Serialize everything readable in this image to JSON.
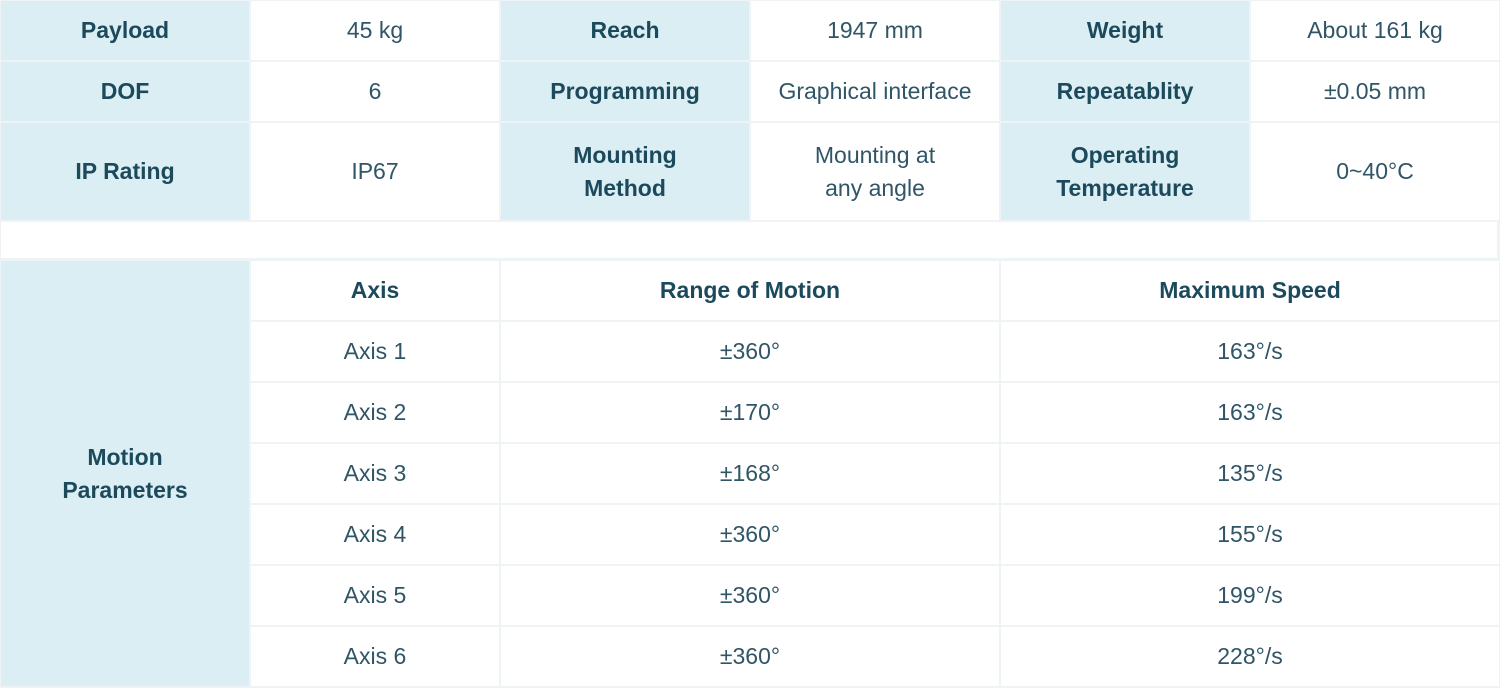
{
  "specs": {
    "payload_label": "Payload",
    "payload_value": "45 kg",
    "reach_label": "Reach",
    "reach_value": "1947 mm",
    "weight_label": "Weight",
    "weight_value": "About 161 kg",
    "dof_label": "DOF",
    "dof_value": "6",
    "programming_label": "Programming",
    "programming_value": "Graphical interface",
    "repeatability_label": "Repeatablity",
    "repeatability_value": "±0.05 mm",
    "ip_label": "IP Rating",
    "ip_value": "IP67",
    "mounting_label": "Mounting\nMethod",
    "mounting_value": "Mounting at\nany angle",
    "temperature_label": "Operating\nTemperature",
    "temperature_value": "0~40°C"
  },
  "motion": {
    "section_label": "Motion\nParameters",
    "headers": {
      "axis": "Axis",
      "range": "Range of Motion",
      "speed": "Maximum Speed"
    },
    "rows": [
      {
        "axis": "Axis 1",
        "range": "±360°",
        "speed": "163°/s"
      },
      {
        "axis": "Axis 2",
        "range": "±170°",
        "speed": "163°/s"
      },
      {
        "axis": "Axis 3",
        "range": "±168°",
        "speed": "135°/s"
      },
      {
        "axis": "Axis 4",
        "range": "±360°",
        "speed": "155°/s"
      },
      {
        "axis": "Axis 5",
        "range": "±360°",
        "speed": "199°/s"
      },
      {
        "axis": "Axis 6",
        "range": "±360°",
        "speed": "228°/s"
      }
    ]
  },
  "colors": {
    "header_cell_bg": "#daeef3",
    "value_cell_bg": "#ffffff",
    "grid_line": "#eef3f5",
    "text": "#1f4a5c"
  }
}
